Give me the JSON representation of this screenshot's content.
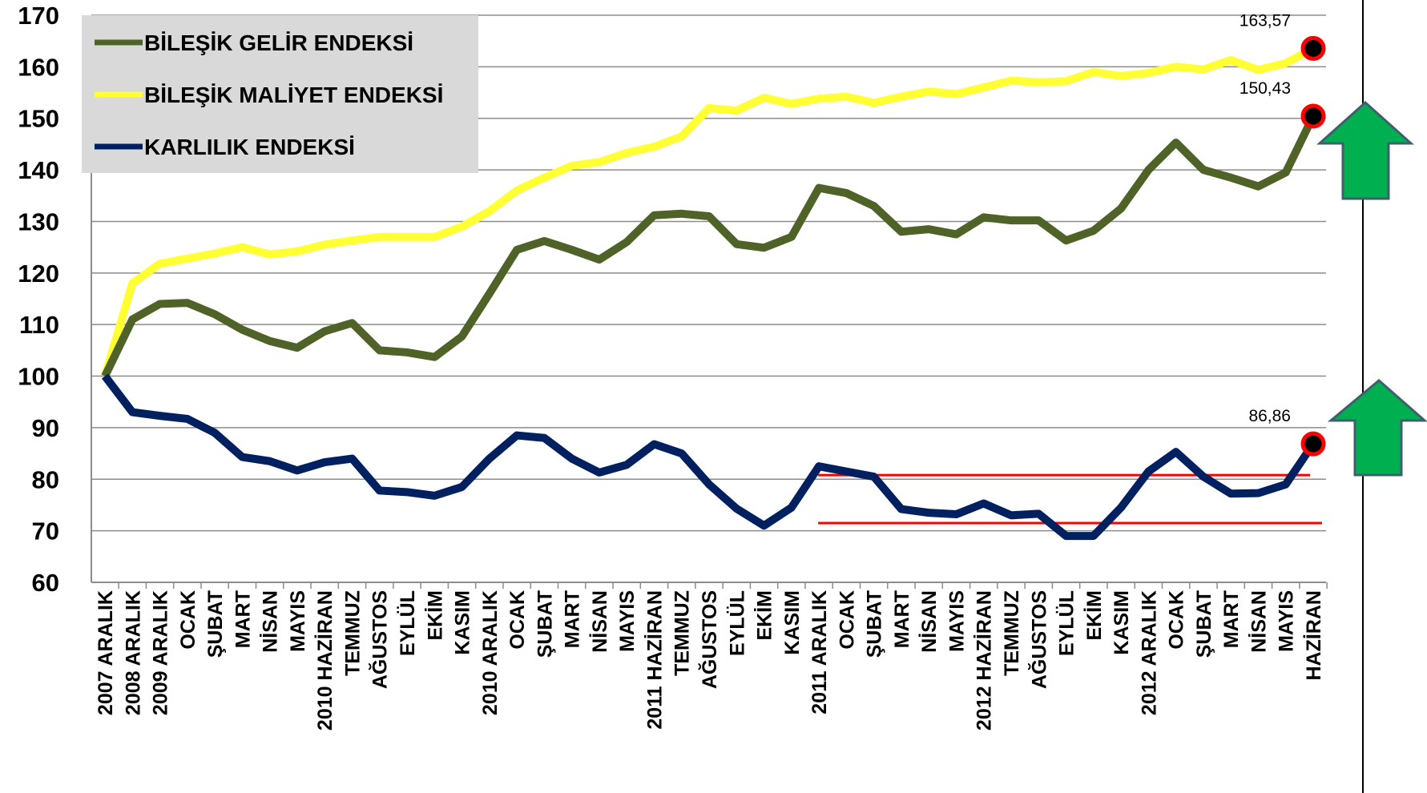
{
  "chart_data": {
    "type": "line",
    "categories": [
      "2007 ARALIK",
      "2008 ARALIK",
      "2009 ARALIK",
      "OCAK",
      "ŞUBAT",
      "MART",
      "NİSAN",
      "MAYIS",
      "2010 HAZİRAN",
      "TEMMUZ",
      "AĞUSTOS",
      "EYLÜL",
      "EKİM",
      "KASIM",
      "2010 ARALIK",
      "OCAK",
      "ŞUBAT",
      "MART",
      "NİSAN",
      "MAYIS",
      "2011 HAZİRAN",
      "TEMMUZ",
      "AĞUSTOS",
      "EYLÜL",
      "EKİM",
      "KASIM",
      "2011 ARALIK",
      "OCAK",
      "ŞUBAT",
      "MART",
      "NİSAN",
      "MAYIS",
      "2012 HAZİRAN",
      "TEMMUZ",
      "AĞUSTOS",
      "EYLÜL",
      "EKİM",
      "KASIM",
      "2012 ARALIK",
      "OCAK",
      "ŞUBAT",
      "MART",
      "NİSAN",
      "MAYIS",
      "HAZİRAN"
    ],
    "series": [
      {
        "name": "BİLEŞİK GELİR ENDEKSİ",
        "color": "#4f6228",
        "values": [
          100,
          111,
          114,
          114.2,
          112,
          109,
          106.8,
          105.5,
          108.7,
          110.3,
          105,
          104.6,
          103.7,
          107.7,
          116,
          124.5,
          126.2,
          124.5,
          122.6,
          126,
          131.2,
          131.5,
          131,
          125.6,
          124.9,
          127,
          136.5,
          135.5,
          133,
          128,
          128.5,
          127.5,
          130.8,
          130.2,
          130.2,
          126.3,
          128.2,
          132.5,
          140,
          145.3,
          140,
          138.5,
          136.8,
          139.5,
          150.43
        ],
        "value_labels": {
          "44": "150,43"
        }
      },
      {
        "name": "BİLEŞİK MALİYET ENDEKSİ",
        "color": "#ffff33",
        "values": [
          100,
          118,
          121.8,
          122.8,
          123.8,
          125,
          123.6,
          124.2,
          125.5,
          126.3,
          127,
          127,
          127,
          129,
          132,
          136,
          138.5,
          140.8,
          141.5,
          143.3,
          144.5,
          146.5,
          152,
          151.5,
          154,
          152.8,
          153.8,
          154.2,
          153,
          154.2,
          155.2,
          154.7,
          156,
          157.3,
          157,
          157.2,
          159,
          158.2,
          158.8,
          160,
          159.5,
          161.3,
          159.4,
          160.7,
          163.57
        ],
        "value_labels": {
          "44": "163,57"
        }
      },
      {
        "name": "KARLILIK ENDEKSİ",
        "color": "#002060",
        "values": [
          100,
          93,
          92.3,
          91.7,
          89,
          84.3,
          83.5,
          81.7,
          83.3,
          84,
          77.8,
          77.5,
          76.8,
          78.5,
          84,
          88.5,
          88,
          84,
          81.3,
          82.8,
          86.8,
          85,
          79,
          74.3,
          71,
          74.5,
          82.5,
          81.5,
          80.5,
          74.2,
          73.5,
          73.2,
          75.3,
          73,
          73.3,
          69,
          69,
          74.5,
          81.5,
          85.3,
          80.5,
          77.2,
          77.3,
          79,
          86.86
        ],
        "value_labels": {
          "44": "86,86"
        }
      }
    ],
    "reference_lines": [
      80.8,
      71.5
    ],
    "ylim": [
      60,
      170
    ],
    "yticks": [
      60,
      70,
      80,
      90,
      100,
      110,
      120,
      130,
      140,
      150,
      160,
      170
    ],
    "grid": true,
    "legend": "upper left"
  }
}
